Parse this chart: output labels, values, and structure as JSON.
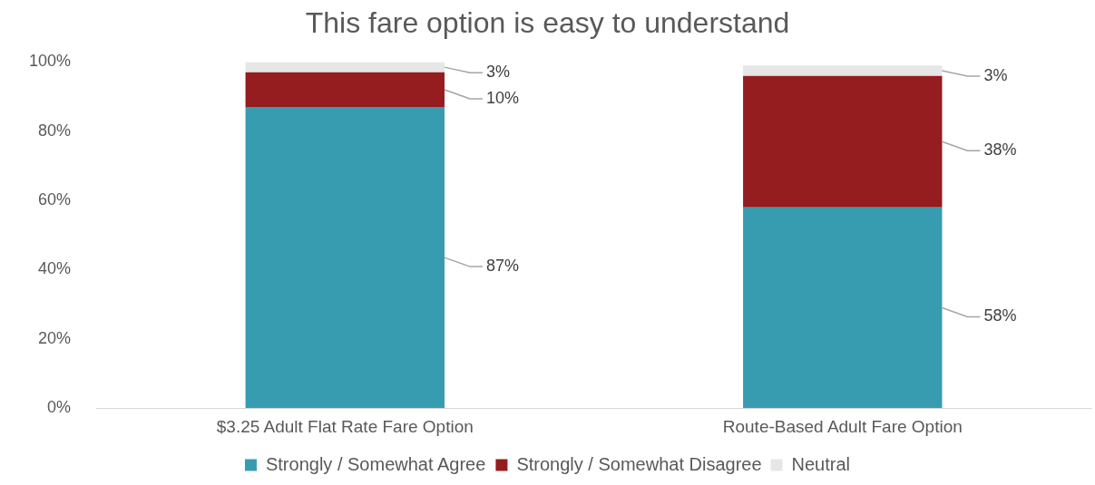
{
  "chart_data": {
    "type": "bar",
    "title": "This fare option is easy to understand",
    "categories": [
      "$3.25 Adult Flat Rate Fare Option",
      "Route-Based Adult Fare Option"
    ],
    "stacked": true,
    "series": [
      {
        "name": "Strongly / Somewhat Agree",
        "color": "#389cb0",
        "values": [
          87,
          58
        ],
        "value_labels": [
          "87%",
          "58%"
        ]
      },
      {
        "name": "Strongly / Somewhat Disagree",
        "color": "#951c1f",
        "values": [
          10,
          38
        ],
        "value_labels": [
          "10%",
          "38%"
        ]
      },
      {
        "name": "Neutral",
        "color": "#e6e6e6",
        "values": [
          3,
          3
        ],
        "value_labels": [
          "3%",
          "3%"
        ]
      }
    ],
    "ylim": [
      0,
      100
    ],
    "yticks": [
      {
        "value": 0,
        "label": "0%"
      },
      {
        "value": 20,
        "label": "20%"
      },
      {
        "value": 40,
        "label": "40%"
      },
      {
        "value": 60,
        "label": "60%"
      },
      {
        "value": 80,
        "label": "80%"
      },
      {
        "value": 100,
        "label": "100%"
      }
    ],
    "grid": false,
    "legend": "bottom"
  }
}
